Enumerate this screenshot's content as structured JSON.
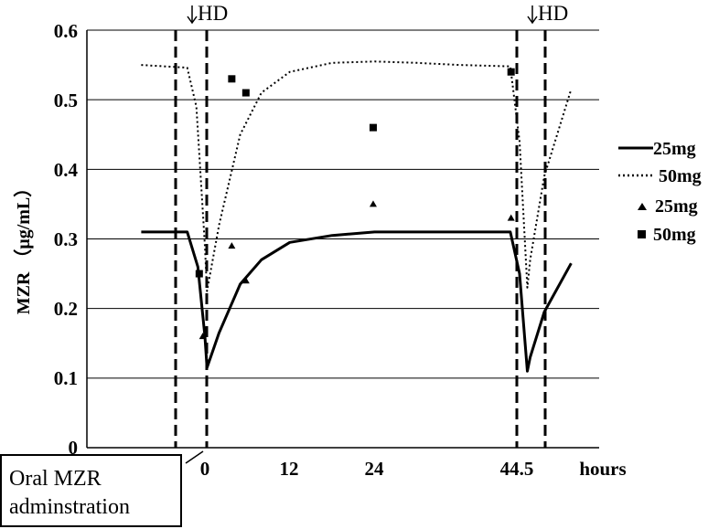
{
  "chart_data": {
    "type": "line",
    "title": "",
    "ylabel": "MZR （μg/mL）",
    "xlabel": "hours",
    "ylim": [
      0,
      0.6
    ],
    "yticks": [
      "0",
      "0.1",
      "0.2",
      "0.3",
      "0.4",
      "0.5",
      "0.6"
    ],
    "xticks": [
      "0",
      "12",
      "24",
      "44.5"
    ],
    "grid": "horizontal",
    "legend_position": "right",
    "annotations": {
      "hd_label": "HD",
      "oral_line1": "Oral MZR",
      "oral_line2": "adminstration"
    },
    "series": [
      {
        "name": "25mg",
        "kind": "line",
        "style": "solid",
        "x": [
          -9,
          -2.5,
          -1,
          0,
          0.3,
          2,
          5,
          8,
          12,
          18,
          24,
          30,
          36,
          43,
          43.2,
          44.5,
          45.6,
          46,
          48,
          51.8
        ],
        "y": [
          0.31,
          0.31,
          0.26,
          0.16,
          0.115,
          0.165,
          0.235,
          0.27,
          0.295,
          0.305,
          0.31,
          0.31,
          0.31,
          0.31,
          0.31,
          0.25,
          0.11,
          0.13,
          0.195,
          0.265
        ]
      },
      {
        "name": "50mg",
        "kind": "line",
        "style": "dotted",
        "x": [
          -9,
          -2.5,
          -1.2,
          0,
          0.3,
          2,
          5,
          8,
          12,
          18,
          24,
          30,
          36,
          43,
          43.2,
          44.5,
          45.6,
          46,
          48,
          51.8
        ],
        "y": [
          0.55,
          0.546,
          0.49,
          0.29,
          0.225,
          0.32,
          0.45,
          0.51,
          0.54,
          0.553,
          0.555,
          0.553,
          0.55,
          0.548,
          0.548,
          0.44,
          0.23,
          0.27,
          0.39,
          0.515
        ]
      },
      {
        "name": "25mg",
        "kind": "marker",
        "marker": "triangle",
        "x": [
          -0.3,
          3.8,
          5.8,
          23.8,
          43.3
        ],
        "y": [
          0.16,
          0.29,
          0.24,
          0.35,
          0.33
        ]
      },
      {
        "name": "50mg",
        "kind": "marker",
        "marker": "square",
        "x": [
          -0.8,
          3.8,
          5.8,
          23.8,
          43.3
        ],
        "y": [
          0.25,
          0.53,
          0.51,
          0.46,
          0.54
        ]
      }
    ]
  }
}
